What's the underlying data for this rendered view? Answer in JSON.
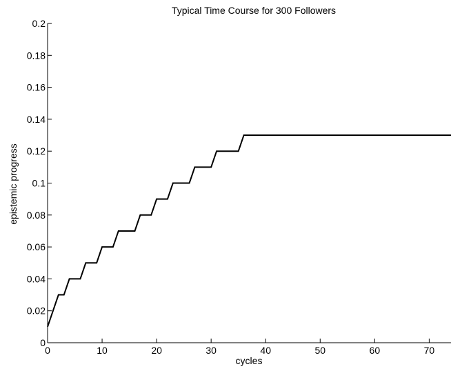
{
  "chart_data": {
    "type": "line",
    "title": "Typical Time Course for 300 Followers",
    "xlabel": "cycles",
    "ylabel": "epistemic progress",
    "xlim": [
      0,
      74
    ],
    "ylim": [
      0,
      0.2
    ],
    "xticks": [
      0,
      10,
      20,
      30,
      40,
      50,
      60,
      70
    ],
    "yticks": [
      0,
      0.02,
      0.04,
      0.06,
      0.08,
      0.1,
      0.12,
      0.14,
      0.16,
      0.18,
      0.2
    ],
    "xtick_labels": [
      "0",
      "10",
      "20",
      "30",
      "40",
      "50",
      "60",
      "70"
    ],
    "ytick_labels": [
      "0",
      "0.02",
      "0.04",
      "0.06",
      "0.08",
      "0.1",
      "0.12",
      "0.14",
      "0.16",
      "0.18",
      "0.2"
    ],
    "grid": false,
    "legend": "none",
    "line_color": "#000000",
    "series": [
      {
        "x": [
          0,
          2,
          3,
          4,
          6,
          7,
          9,
          10,
          12,
          13,
          16,
          17,
          19,
          20,
          22,
          23,
          26,
          27,
          30,
          31,
          35,
          36,
          74
        ],
        "y": [
          0.01,
          0.03,
          0.03,
          0.04,
          0.04,
          0.05,
          0.05,
          0.06,
          0.06,
          0.07,
          0.07,
          0.08,
          0.08,
          0.09,
          0.09,
          0.1,
          0.1,
          0.11,
          0.11,
          0.12,
          0.12,
          0.13,
          0.13
        ]
      }
    ]
  }
}
